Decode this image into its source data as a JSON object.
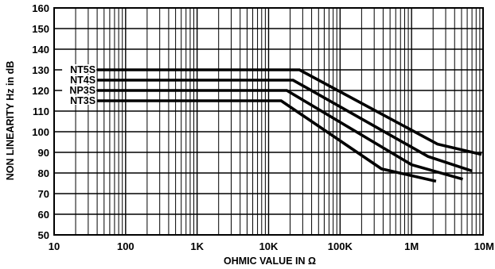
{
  "chart_data": {
    "type": "line",
    "xlabel": "OHMIC VALUE IN Ω",
    "ylabel": "NON LINEARITY Hz in dB",
    "x_scale": "log",
    "xlim": [
      10,
      10000000
    ],
    "ylim": [
      50,
      160
    ],
    "grid": true,
    "x_ticks": [
      10,
      100,
      1000,
      10000,
      100000,
      1000000,
      10000000
    ],
    "x_tick_labels": [
      "10",
      "100",
      "1K",
      "10K",
      "100K",
      "1M",
      "10M"
    ],
    "y_ticks": [
      50,
      60,
      70,
      80,
      90,
      100,
      110,
      120,
      130,
      140,
      150,
      160
    ],
    "y_tick_labels": [
      "50",
      "60",
      "70",
      "80",
      "90",
      "100",
      "110",
      "120",
      "130",
      "140",
      "150",
      "160"
    ],
    "series": [
      {
        "name": "NT5S",
        "x": [
          40,
          27000,
          2300000,
          9500000
        ],
        "y": [
          130,
          130,
          94,
          89
        ]
      },
      {
        "name": "NT4S",
        "x": [
          40,
          22000,
          1700000,
          7000000
        ],
        "y": [
          125,
          125,
          88,
          81
        ]
      },
      {
        "name": "NP3S",
        "x": [
          40,
          18000,
          1000000,
          5200000
        ],
        "y": [
          120,
          120,
          84,
          77
        ]
      },
      {
        "name": "NT3S",
        "x": [
          40,
          15000,
          380000,
          2200000
        ],
        "y": [
          115,
          115,
          82,
          76
        ]
      }
    ]
  }
}
